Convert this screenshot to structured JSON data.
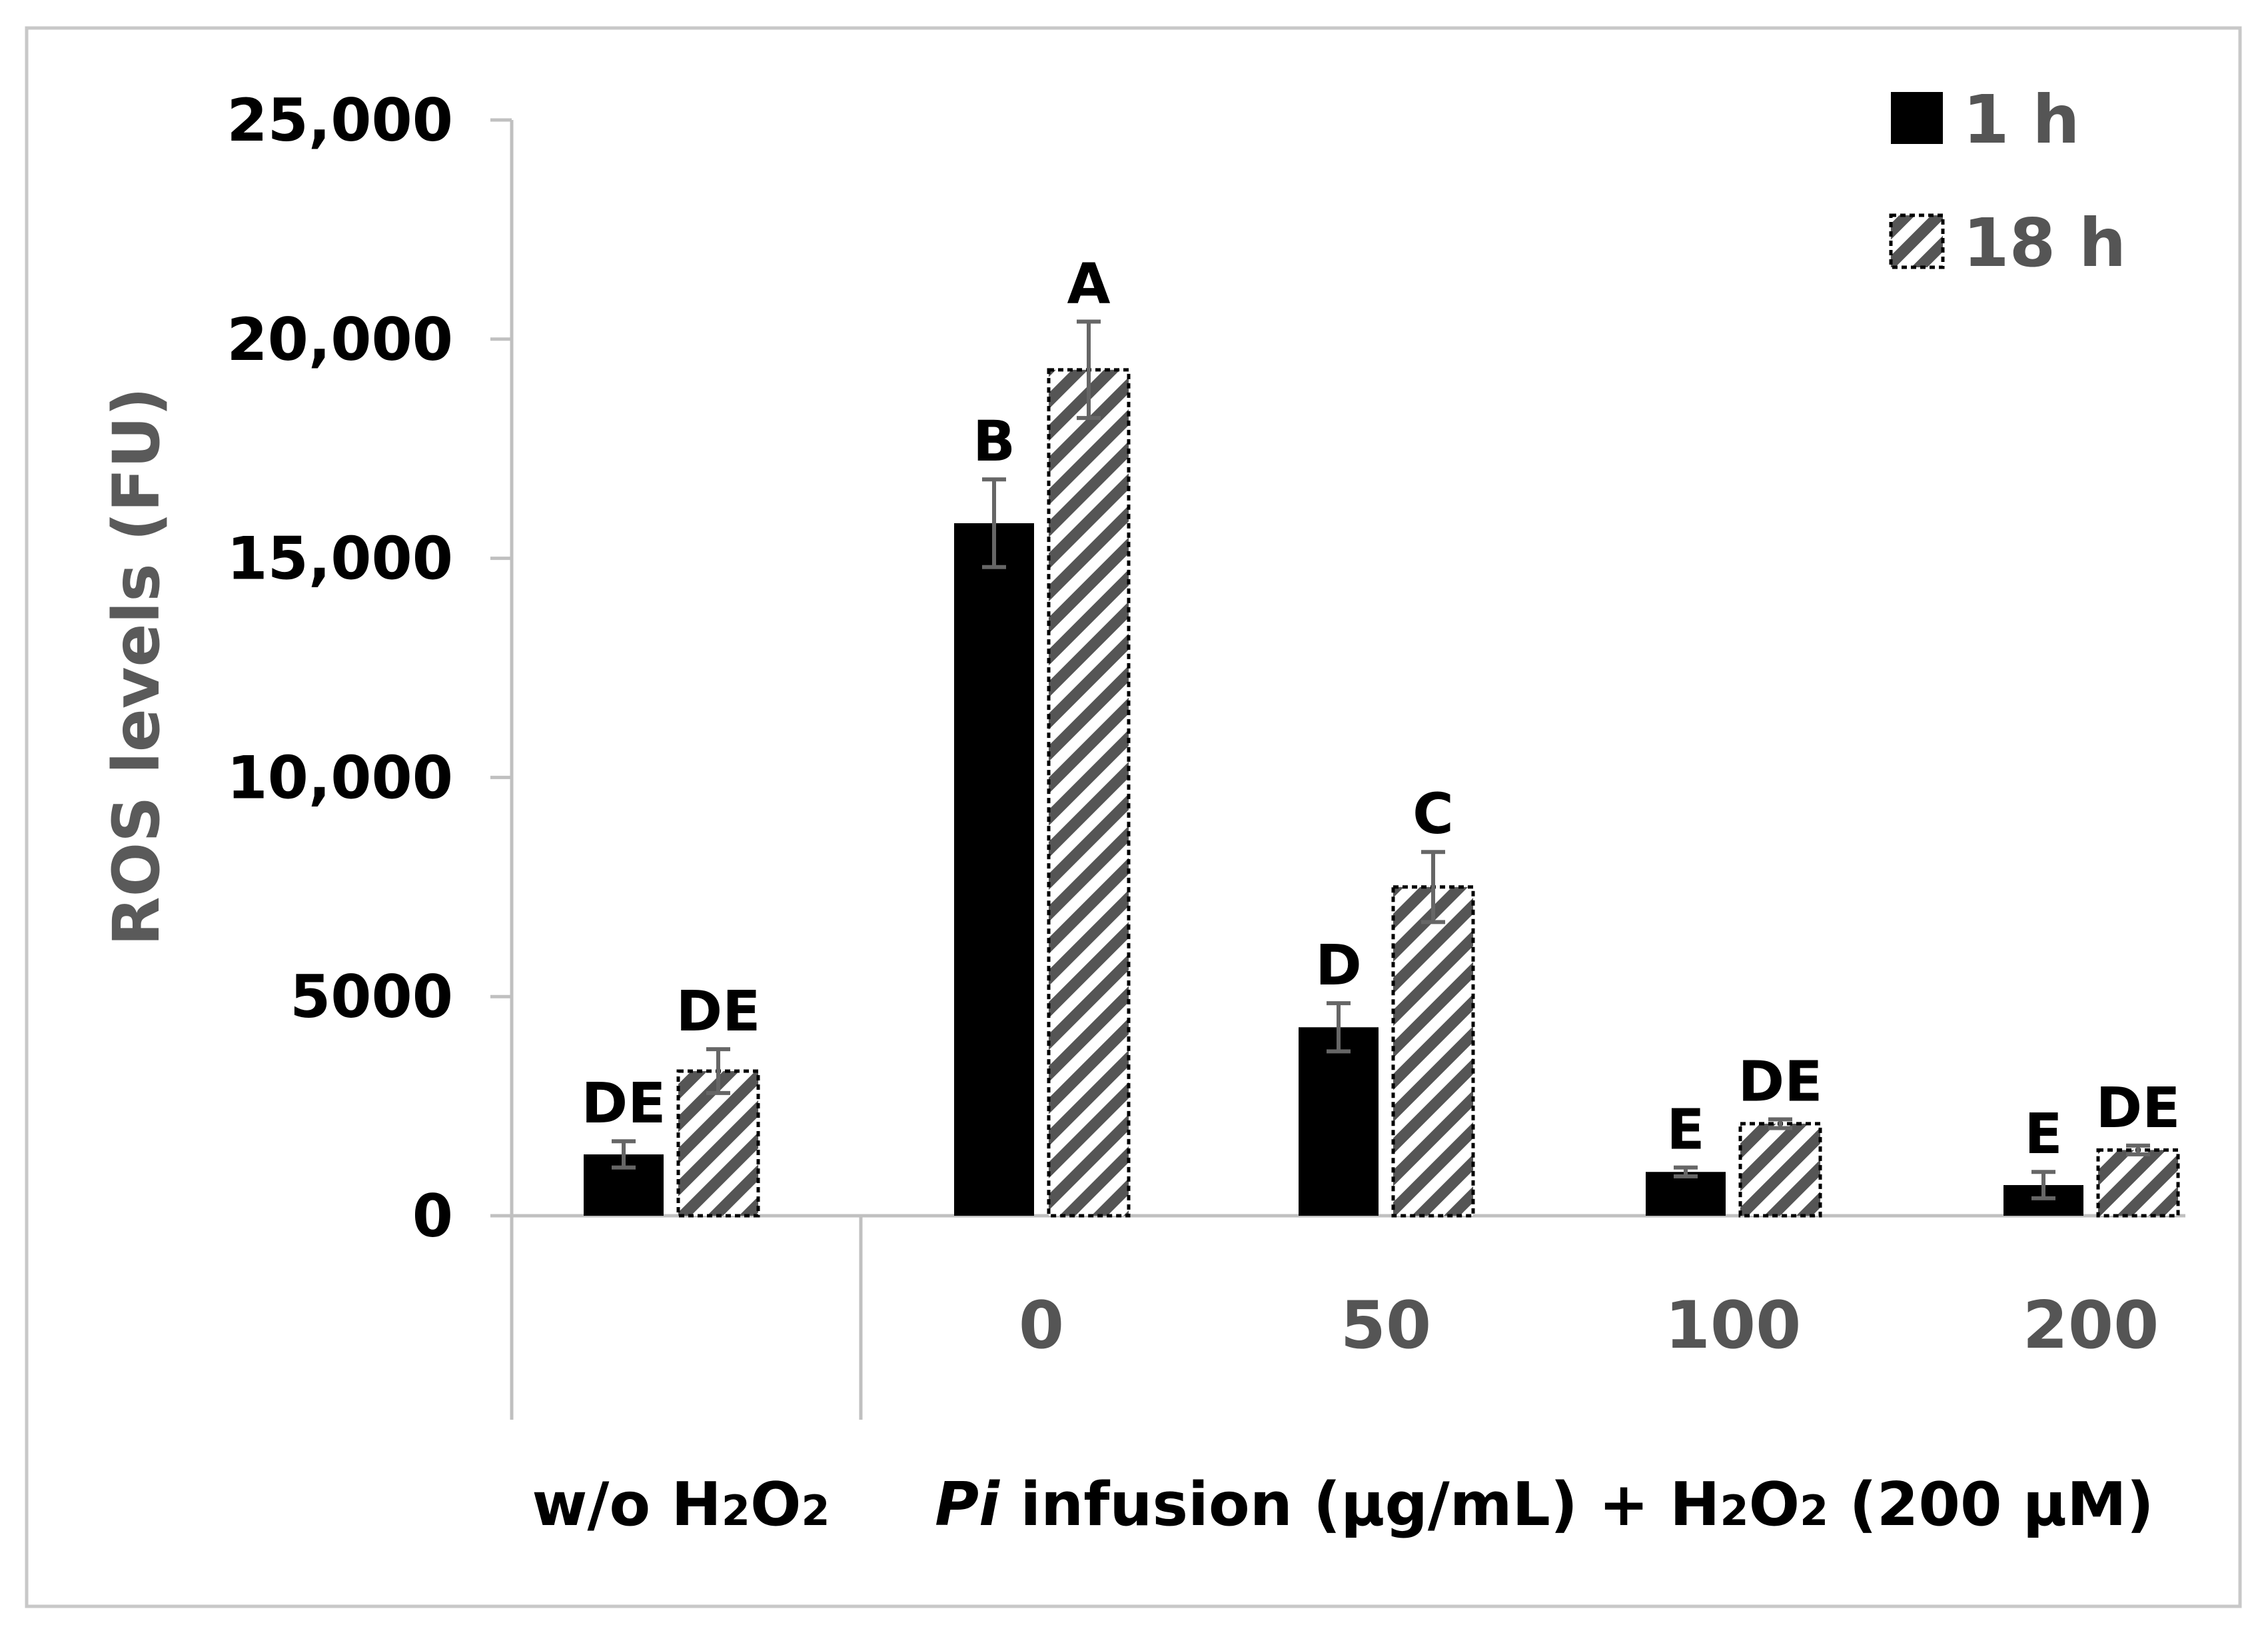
{
  "chart_data": {
    "type": "bar",
    "title": "",
    "ylabel": "ROS levels (FU)",
    "ylim": [
      0,
      25000
    ],
    "yticks": [
      0,
      5000,
      10000,
      15000,
      20000,
      25000
    ],
    "ytick_labels": [
      "0",
      "5000",
      "10,000",
      "15,000",
      "20,000",
      "25,000"
    ],
    "categories": [
      "",
      "0",
      "50",
      "100",
      "200"
    ],
    "groups": [
      {
        "label_main": "w/o H",
        "sub1": "2",
        "mid": "O",
        "sub2": "2",
        "span": [
          0,
          0
        ]
      },
      {
        "italic": "Pi",
        "label_main": " infusion (µg/mL) + H",
        "sub1": "2",
        "mid": "O",
        "sub2": "2",
        "tail": " (200 µM)",
        "span": [
          1,
          4
        ]
      }
    ],
    "series": [
      {
        "name": "1 h",
        "color": "#000000",
        "pattern": "solid",
        "values": [
          1400,
          15800,
          4300,
          1000,
          700
        ],
        "errors": [
          300,
          1000,
          550,
          100,
          300
        ],
        "labels": [
          "DE",
          "B",
          "D",
          "E",
          "E"
        ]
      },
      {
        "name": "18 h",
        "color": "#555555",
        "pattern": "hatched",
        "values": [
          3300,
          19300,
          7500,
          2100,
          1500
        ],
        "errors": [
          500,
          1100,
          800,
          100,
          100
        ],
        "labels": [
          "DE",
          "A",
          "C",
          "DE",
          "DE"
        ]
      }
    ],
    "legend": "top-right",
    "grid": false
  }
}
